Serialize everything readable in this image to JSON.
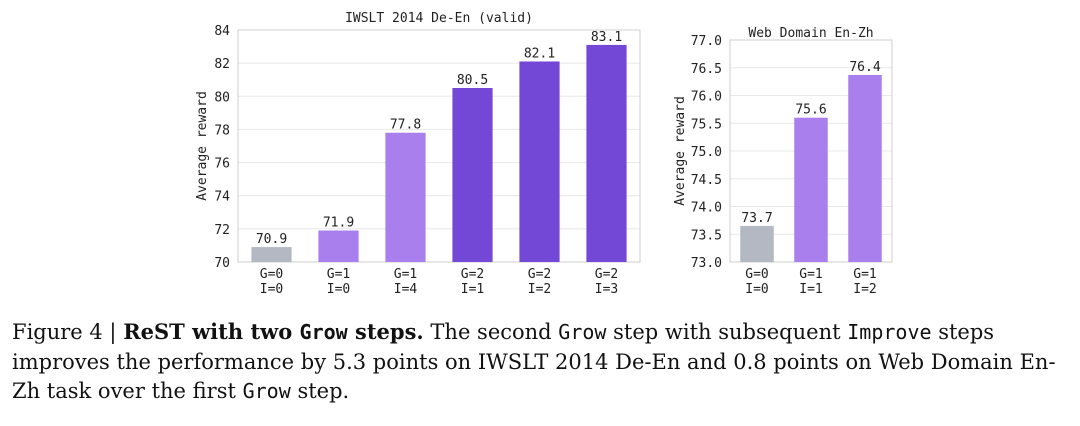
{
  "caption": {
    "prefix": "Figure 4 | ",
    "bold_a": "ReST with two ",
    "bold_code": "Grow",
    "bold_b": " steps.",
    "t1": " The second ",
    "c1": "Grow",
    "t2": " step with subsequent ",
    "c2": "Improve",
    "t3": " steps improves the performance by 5.3 points on IWSLT 2014 De-En and 0.8 points on Web Domain En-Zh task over the first ",
    "c3": "Grow",
    "t4": " step."
  },
  "colors": {
    "gray": "#b3b8c2",
    "light_purple": "#a97fee",
    "dark_purple": "#7448d6",
    "axis": "#cfcfcf",
    "grid": "#e8e8e8",
    "text": "#222222"
  },
  "chart_data": [
    {
      "type": "bar",
      "title": "IWSLT 2014 De-En (valid)",
      "ylabel": "Average reward",
      "ylim": [
        70,
        84
      ],
      "yticks": [
        "70",
        "72",
        "74",
        "76",
        "78",
        "80",
        "82",
        "84"
      ],
      "categories": [
        [
          "G=0",
          "I=0"
        ],
        [
          "G=1",
          "I=0"
        ],
        [
          "G=1",
          "I=4"
        ],
        [
          "G=2",
          "I=1"
        ],
        [
          "G=2",
          "I=2"
        ],
        [
          "G=2",
          "I=3"
        ]
      ],
      "values": [
        70.9,
        71.9,
        77.8,
        80.5,
        82.1,
        83.1
      ],
      "labels": [
        "70.9",
        "71.9",
        "77.8",
        "80.5",
        "82.1",
        "83.1"
      ],
      "bar_colors": [
        "gray",
        "light_purple",
        "light_purple",
        "dark_purple",
        "dark_purple",
        "dark_purple"
      ]
    },
    {
      "type": "bar",
      "title": "Web Domain En-Zh",
      "ylabel": "Average reward",
      "ylim": [
        73.0,
        77.0
      ],
      "yticks": [
        "73.0",
        "73.5",
        "74.0",
        "74.5",
        "75.0",
        "75.5",
        "76.0",
        "76.5",
        "77.0"
      ],
      "categories": [
        [
          "G=0",
          "I=0"
        ],
        [
          "G=1",
          "I=1"
        ],
        [
          "G=1",
          "I=2"
        ]
      ],
      "values": [
        73.65,
        75.6,
        76.37
      ],
      "labels": [
        "73.7",
        "75.6",
        "76.4"
      ],
      "bar_colors": [
        "gray",
        "light_purple",
        "light_purple"
      ]
    }
  ]
}
